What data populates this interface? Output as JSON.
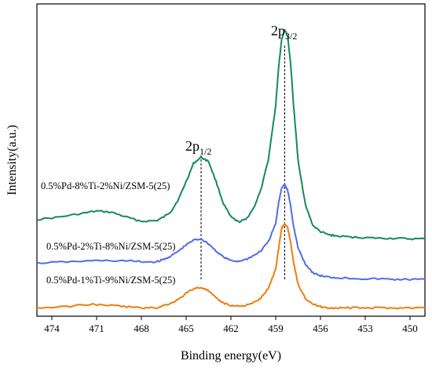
{
  "chart_data": {
    "type": "line",
    "title": "",
    "xlabel": "Binding energy(eV)",
    "ylabel": "Intensity(a.u.)",
    "xlim": [
      475,
      449
    ],
    "x_reversed": true,
    "x_ticks": [
      474,
      471,
      468,
      465,
      462,
      459,
      456,
      453,
      450
    ],
    "y_ticks_shown": false,
    "grid": false,
    "legend": "none",
    "annotations": [
      {
        "text_main": "2p",
        "text_sub": "1/2",
        "x": 464.0
      },
      {
        "text_main": "2p",
        "text_sub": "3/2",
        "x": 458.4
      }
    ],
    "series": [
      {
        "name": "0.5%Pd-8%Ti-2%Ni/ZSM-5(25)",
        "color": "#138a5b",
        "x": [
          475,
          473.5,
          472,
          471,
          470,
          469,
          468,
          467,
          466.5,
          466,
          465.5,
          465,
          464.5,
          464,
          463.5,
          463,
          462.5,
          462,
          461.5,
          461,
          460.5,
          460,
          459.5,
          459,
          458.8,
          458.6,
          458.4,
          458.2,
          458,
          457.8,
          457.5,
          457,
          456.5,
          456,
          455.5,
          455,
          454,
          453,
          452,
          451,
          450,
          449
        ],
        "y": [
          1.52,
          1.56,
          1.62,
          1.66,
          1.64,
          1.56,
          1.49,
          1.5,
          1.56,
          1.66,
          1.86,
          2.15,
          2.45,
          2.55,
          2.48,
          2.15,
          1.78,
          1.56,
          1.48,
          1.52,
          1.7,
          2.0,
          2.5,
          3.4,
          4.05,
          4.5,
          4.66,
          4.55,
          4.1,
          3.4,
          2.5,
          1.75,
          1.42,
          1.32,
          1.27,
          1.25,
          1.23,
          1.22,
          1.21,
          1.21,
          1.2,
          1.2
        ]
      },
      {
        "name": "0.5%Pd-2%Ti-8%Ni/ZSM-5(25)",
        "color": "#4f6ee6",
        "x": [
          475,
          473,
          471,
          469,
          468,
          467,
          466.5,
          466,
          465.5,
          465,
          464.5,
          464,
          463.5,
          463,
          462.5,
          462,
          461.5,
          461,
          460.5,
          460,
          459.5,
          459,
          458.8,
          458.6,
          458.4,
          458.2,
          458,
          457.8,
          457.5,
          457,
          456.5,
          456,
          455.5,
          455,
          454,
          453,
          452,
          451,
          450,
          449
        ],
        "y": [
          0.8,
          0.82,
          0.84,
          0.84,
          0.82,
          0.82,
          0.86,
          0.92,
          1.0,
          1.1,
          1.18,
          1.2,
          1.12,
          1.0,
          0.9,
          0.84,
          0.83,
          0.86,
          0.92,
          1.0,
          1.15,
          1.45,
          1.8,
          2.05,
          2.1,
          2.0,
          1.75,
          1.4,
          1.05,
          0.78,
          0.64,
          0.59,
          0.57,
          0.56,
          0.55,
          0.54,
          0.54,
          0.53,
          0.53,
          0.53
        ]
      },
      {
        "name": "0.5%Pd-1%Ti-9%Ni/ZSM-5(25)",
        "color": "#f07d0b",
        "x": [
          475,
          473,
          471.5,
          470,
          469,
          468,
          467,
          466.5,
          466,
          465.5,
          465,
          464.5,
          464,
          463.5,
          463,
          462.5,
          462,
          461.5,
          461,
          460.5,
          460,
          459.5,
          459,
          458.8,
          458.6,
          458.4,
          458.2,
          458,
          457.8,
          457.5,
          457,
          456.5,
          456,
          455.5,
          455,
          454,
          453,
          452,
          451,
          450,
          449
        ],
        "y": [
          0.06,
          0.08,
          0.12,
          0.1,
          0.08,
          0.06,
          0.06,
          0.1,
          0.14,
          0.2,
          0.3,
          0.38,
          0.4,
          0.34,
          0.22,
          0.14,
          0.1,
          0.09,
          0.1,
          0.14,
          0.22,
          0.38,
          0.7,
          1.05,
          1.38,
          1.45,
          1.38,
          1.15,
          0.8,
          0.45,
          0.22,
          0.12,
          0.08,
          0.06,
          0.06,
          0.06,
          0.06,
          0.06,
          0.06,
          0.06,
          0.06
        ]
      }
    ],
    "reference_lines_x": [
      464.0,
      458.4
    ]
  }
}
